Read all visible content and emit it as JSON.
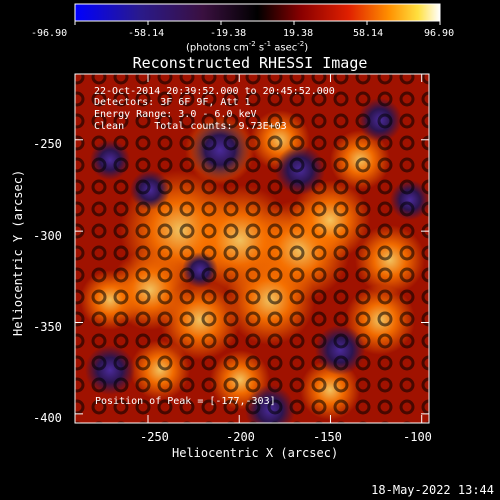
{
  "colorbar": {
    "tick_labels": [
      "-96.90",
      "-58.14",
      "-19.38",
      "19.38",
      "58.14",
      "96.90"
    ],
    "units": {
      "label": "(photons cm",
      "exp1": "-2",
      "s": " s",
      "exp2": "-1",
      "asec": " asec",
      "exp3": "-2",
      "close": ")"
    }
  },
  "plot": {
    "title": "Reconstructed RHESSI Image",
    "xlabel": "Heliocentric X (arcsec)",
    "ylabel": "Heliocentric Y (arcsec)",
    "info_lines": [
      "22-Oct-2014 20:39:52.000 to 20:45:52.000",
      "Detectors: 3F 6F 9F, Att 1",
      "Energy Range: 3.0 - 6.0 keV",
      "Clean     Total counts: 9.73E+03"
    ],
    "peak_text": "Position of Peak = [-177,-303]"
  },
  "timestamp": "18-May-2022 13:44",
  "chart_data": {
    "type": "heatmap",
    "title": "Reconstructed RHESSI Image",
    "xlabel": "Heliocentric X (arcsec)",
    "ylabel": "Heliocentric Y (arcsec)",
    "xlim": [
      -290,
      -96
    ],
    "ylim": [
      -405,
      -214
    ],
    "x_ticks": [
      -250,
      -200,
      -150,
      -100
    ],
    "y_ticks": [
      -250,
      -300,
      -350,
      -400
    ],
    "x_tick_labels": [
      "-250",
      "-200",
      "-150",
      "-100"
    ],
    "y_tick_labels": [
      "-250",
      "-300",
      "-350",
      "-400"
    ],
    "color_range": [
      -96.9,
      96.9
    ],
    "colormap": "rhessi-blue-black-red-yellow-white",
    "peak_position": [
      -177,
      -303
    ]
  }
}
